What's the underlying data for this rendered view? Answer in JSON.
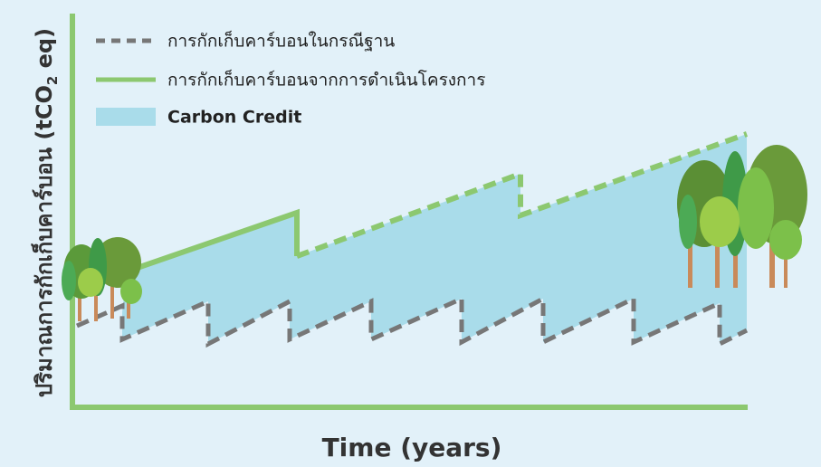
{
  "legend": {
    "baseline": "การกักเก็บคาร์บอนในกรณีฐาน",
    "project": "การกักเก็บคาร์บอนจากการดำเนินโครงการ",
    "credit": "Carbon Credit"
  },
  "y_axis_label": {
    "main": "ปริมาณการกักเก็บคาร์บอน (tCO",
    "subscript": "2",
    "end": " eq)"
  },
  "x_axis_label": "Time (years)"
}
